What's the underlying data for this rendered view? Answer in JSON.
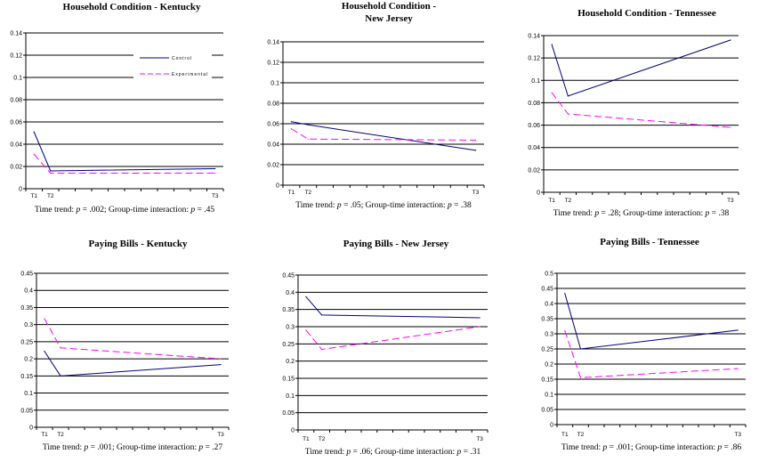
{
  "colors": {
    "control": "#000080",
    "experimental": "#ff00ff",
    "grid": "#000000"
  },
  "legend": {
    "entries": [
      "Control",
      "Experimental"
    ]
  },
  "chart_data": [
    {
      "type": "line",
      "title": [
        "Household Condition - Kentucky"
      ],
      "categories": [
        "T1",
        "T2",
        "",
        "",
        "",
        "",
        "",
        "",
        "",
        "",
        "",
        "T3"
      ],
      "ylim": [
        0,
        0.14
      ],
      "yticks": [
        0,
        0.02,
        0.04,
        0.06,
        0.08,
        0.1,
        0.12,
        0.14
      ],
      "grid": true,
      "legend": "top-right",
      "series": [
        {
          "name": "Control",
          "x": [
            "T1",
            "T2",
            "T3"
          ],
          "values": [
            0.051,
            0.016,
            0.018
          ]
        },
        {
          "name": "Experimental",
          "x": [
            "T1",
            "T2",
            "T3"
          ],
          "values": [
            0.031,
            0.014,
            0.014
          ]
        }
      ],
      "footnote": {
        "time_label": "Time trend: ",
        "p": "p",
        "time_value": " = .002",
        "inter_label": "; Group-time interaction: ",
        "inter_value": " = .45"
      }
    },
    {
      "type": "line",
      "title": [
        "Household Condition -",
        "New Jersey"
      ],
      "categories": [
        "T1",
        "T2",
        "",
        "",
        "",
        "",
        "",
        "",
        "",
        "",
        "",
        "T3"
      ],
      "ylim": [
        0,
        0.14
      ],
      "yticks": [
        0,
        0.02,
        0.04,
        0.06,
        0.08,
        0.1,
        0.12,
        0.14
      ],
      "grid": true,
      "series": [
        {
          "name": "Control",
          "x": [
            "T1",
            "T2",
            "T3"
          ],
          "values": [
            0.062,
            0.059,
            0.034
          ]
        },
        {
          "name": "Experimental",
          "x": [
            "T1",
            "T2",
            "T3"
          ],
          "values": [
            0.055,
            0.045,
            0.044
          ]
        }
      ],
      "footnote": {
        "time_label": "Time trend: ",
        "p": "p",
        "time_value": " = .05",
        "inter_label": "; Group-time interaction: ",
        "inter_value": " = .38"
      }
    },
    {
      "type": "line",
      "title": [
        "Household Condition - Tennessee"
      ],
      "categories": [
        "T1",
        "T2",
        "",
        "",
        "",
        "",
        "",
        "",
        "",
        "",
        "",
        "T3"
      ],
      "ylim": [
        0,
        0.14
      ],
      "yticks": [
        0,
        0.02,
        0.04,
        0.06,
        0.08,
        0.1,
        0.12,
        0.14
      ],
      "grid": true,
      "series": [
        {
          "name": "Control",
          "x": [
            "T1",
            "T2",
            "T3"
          ],
          "values": [
            0.132,
            0.086,
            0.136
          ]
        },
        {
          "name": "Experimental",
          "x": [
            "T1",
            "T2",
            "T3"
          ],
          "values": [
            0.089,
            0.07,
            0.058
          ]
        }
      ],
      "footnote": {
        "time_label": "Time trend: ",
        "p": "p",
        "time_value": " = .28",
        "inter_label": "; Group-time interaction: ",
        "inter_value": " = .38"
      }
    },
    {
      "type": "line",
      "title": [
        "Paying Bills - Kentucky"
      ],
      "categories": [
        "T1",
        "T2",
        "",
        "",
        "",
        "",
        "",
        "",
        "",
        "",
        "",
        "T3"
      ],
      "ylim": [
        0,
        0.45
      ],
      "yticks": [
        0,
        0.05,
        0.1,
        0.15,
        0.2,
        0.25,
        0.3,
        0.35,
        0.4,
        0.45
      ],
      "grid": true,
      "series": [
        {
          "name": "Control",
          "x": [
            "T1",
            "T2",
            "T3"
          ],
          "values": [
            0.222,
            0.15,
            0.183
          ]
        },
        {
          "name": "Experimental",
          "x": [
            "T1",
            "T2",
            "T3"
          ],
          "values": [
            0.317,
            0.232,
            0.2
          ]
        }
      ],
      "footnote": {
        "time_label": "Time trend: ",
        "p": "p",
        "time_value": " = .001",
        "inter_label": "; Group-time interaction: ",
        "inter_value": " = .27"
      }
    },
    {
      "type": "line",
      "title": [
        "Paying Bills - New Jersey"
      ],
      "categories": [
        "T1",
        "T2",
        "",
        "",
        "",
        "",
        "",
        "",
        "",
        "",
        "",
        "T3"
      ],
      "ylim": [
        0,
        0.45
      ],
      "yticks": [
        0,
        0.05,
        0.1,
        0.15,
        0.2,
        0.25,
        0.3,
        0.35,
        0.4,
        0.45
      ],
      "grid": true,
      "series": [
        {
          "name": "Control",
          "x": [
            "T1",
            "T2",
            "T3"
          ],
          "values": [
            0.387,
            0.334,
            0.326
          ]
        },
        {
          "name": "Experimental",
          "x": [
            "T1",
            "T2",
            "T3"
          ],
          "values": [
            0.29,
            0.234,
            0.3
          ]
        }
      ],
      "footnote": {
        "time_label": "Time trend: ",
        "p": "p",
        "time_value": " = .06",
        "inter_label": "; Group-time interaction: ",
        "inter_value": " = .31"
      }
    },
    {
      "type": "line",
      "title": [
        "Paying Bills - Tennessee"
      ],
      "categories": [
        "T1",
        "T2",
        "",
        "",
        "",
        "",
        "",
        "",
        "",
        "",
        "",
        "T3"
      ],
      "ylim": [
        0,
        0.5
      ],
      "yticks": [
        0,
        0.05,
        0.1,
        0.15,
        0.2,
        0.25,
        0.3,
        0.35,
        0.4,
        0.45,
        0.5
      ],
      "grid": true,
      "series": [
        {
          "name": "Control",
          "x": [
            "T1",
            "T2",
            "T3"
          ],
          "values": [
            0.433,
            0.25,
            0.312
          ]
        },
        {
          "name": "Experimental",
          "x": [
            "T1",
            "T2",
            "T3"
          ],
          "values": [
            0.31,
            0.155,
            0.185
          ]
        }
      ],
      "footnote": {
        "time_label": "Time trend: ",
        "p": "p",
        "time_value": " = .001",
        "inter_label": "; Group-time interaction: ",
        "inter_value": " = .86"
      }
    }
  ]
}
